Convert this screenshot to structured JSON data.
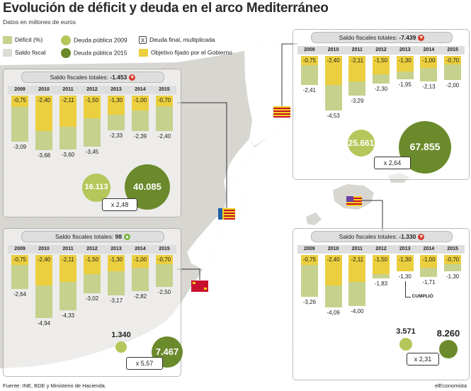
{
  "header": {
    "title": "Evolución de déficit y deuda en el arco Mediterráneo",
    "subtitle": "Datos en millones de euros"
  },
  "legend": {
    "deficit": "Déficit (%)",
    "saldo_fiscal": "Saldo fiscal",
    "deuda_2009": "Deuda pública 2009",
    "deuda_2015": "Deuda pública 2015",
    "deuda_final": "Deuda final, multiplicada",
    "objetivo": "Objetivo fijado por el Gobierno",
    "x_glyph": "X"
  },
  "colors": {
    "deficit_green": "#c6d18d",
    "objetivo_yellow": "#eccf3e",
    "saldo_gray": "#dcdbd6",
    "deuda_2009": "#b5c75a",
    "deuda_2015": "#6b8a2b",
    "map_land": "#d7d6d1",
    "arrow_down": "#d83a2a",
    "arrow_up": "#7cb342"
  },
  "footer": {
    "source": "Fuente: INE, BDE y Ministerio de Hacienda.",
    "credit": "elEconomista"
  },
  "chart_data": [
    {
      "type": "bar",
      "name": "Cataluña",
      "header_label": "Saldo fiscales totales:",
      "header_value": "-7.439",
      "trend": "down",
      "categories": [
        "2009",
        "2010",
        "2011",
        "2012",
        "2013",
        "2014",
        "2015"
      ],
      "objetivo": [
        -0.75,
        -2.4,
        -2.11,
        -1.5,
        -1.3,
        -1.0,
        -0.7
      ],
      "objetivo_labels": [
        "-0,75",
        "-2,40",
        "-2,11",
        "-1,50",
        "-1,30",
        "-1,00",
        "-0,70"
      ],
      "deficit": [
        -2.41,
        -4.53,
        -3.29,
        -2.3,
        -1.95,
        -2.13,
        -2.0
      ],
      "deficit_labels": [
        "-2,41",
        "-4,53",
        "-3,29",
        "-2,30",
        "-1,95",
        "-2,13",
        "-2,00"
      ],
      "deuda_2009": "25.661",
      "deuda_2015": "67.855",
      "multiplicador": "x 2,64"
    },
    {
      "type": "bar",
      "name": "Comunidad Valenciana",
      "header_label": "Saldo fiscales totales:",
      "header_value": "-1.453",
      "trend": "down",
      "categories": [
        "2009",
        "2010",
        "2011",
        "2012",
        "2013",
        "2014",
        "2015"
      ],
      "objetivo": [
        -0.75,
        -2.4,
        -2.11,
        -1.5,
        -1.3,
        -1.0,
        -0.7
      ],
      "objetivo_labels": [
        "-0,75",
        "-2,40",
        "-2,11",
        "-1,50",
        "-1,30",
        "-1,00",
        "-0,70"
      ],
      "deficit": [
        -3.09,
        -3.68,
        -3.6,
        -3.45,
        -2.33,
        -2.39,
        -2.4
      ],
      "deficit_labels": [
        "-3,09",
        "-3,68",
        "-3,60",
        "-3,45",
        "-2,33",
        "-2,39",
        "-2,40"
      ],
      "deuda_2009": "16.113",
      "deuda_2015": "40.085",
      "multiplicador": "x 2,48"
    },
    {
      "type": "bar",
      "name": "Murcia",
      "header_label": "Saldo fiscales totales:",
      "header_value": "98",
      "trend": "up",
      "categories": [
        "2009",
        "2010",
        "2011",
        "2012",
        "2013",
        "2014",
        "2015"
      ],
      "objetivo": [
        -0.75,
        -2.4,
        -2.11,
        -1.5,
        -1.3,
        -1.0,
        -0.7
      ],
      "objetivo_labels": [
        "-0,75",
        "-2,40",
        "-2,11",
        "-1,50",
        "-1,30",
        "-1,00",
        "-0,70"
      ],
      "deficit": [
        -2.64,
        -4.94,
        -4.33,
        -3.02,
        -3.17,
        -2.82,
        -2.5
      ],
      "deficit_labels": [
        "-2,64",
        "-4,94",
        "-4,33",
        "-3,02",
        "-3,17",
        "-2,82",
        "-2,50"
      ],
      "deuda_2009": "1.340",
      "deuda_2015": "7.467",
      "multiplicador": "x 5,57"
    },
    {
      "type": "bar",
      "name": "Baleares",
      "header_label": "Saldo fiscales totales:",
      "header_value": "-1.330",
      "trend": "down",
      "categories": [
        "2009",
        "2010",
        "2011",
        "2012",
        "2013",
        "2014",
        "2015"
      ],
      "objetivo": [
        -0.75,
        -2.4,
        -2.11,
        -1.5,
        -1.3,
        -1.0,
        -0.7
      ],
      "objetivo_labels": [
        "-0,75",
        "-2,40",
        "-2,11",
        "-1,50",
        "-1,30",
        "-1,00",
        "-0,70"
      ],
      "deficit": [
        -3.26,
        -4.09,
        -4.0,
        -1.83,
        -1.3,
        -1.71,
        -1.3
      ],
      "deficit_labels": [
        "-3,26",
        "-4,09",
        "-4,00",
        "-1,83",
        "-1,30",
        "-1,71",
        "-1,30"
      ],
      "deuda_2009": "3.571",
      "deuda_2015": "8.260",
      "multiplicador": "x 2,31",
      "annotation": "CUMPLIÓ"
    }
  ]
}
